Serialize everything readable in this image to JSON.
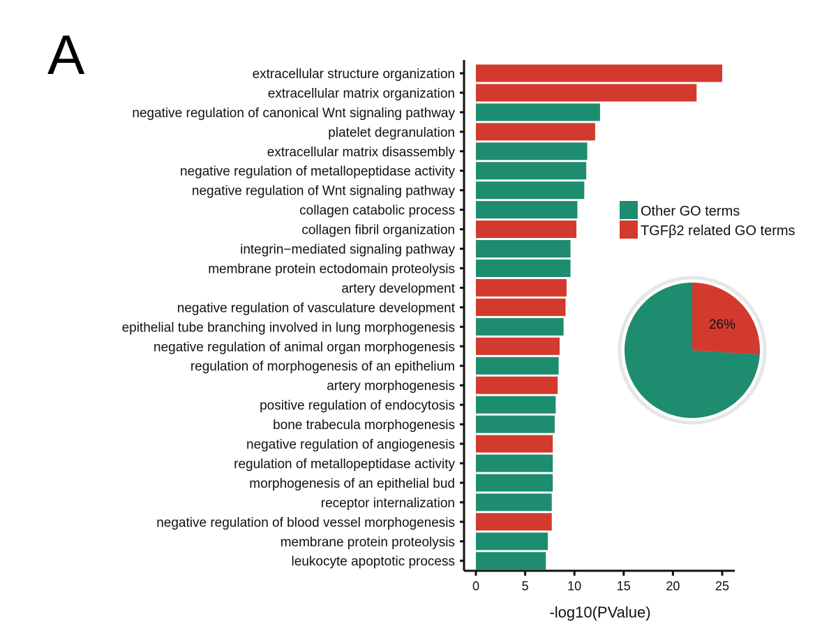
{
  "panel_label": "A",
  "colors": {
    "other": "#1e8c6e",
    "tgfb2": "#d23a2e",
    "axis": "#111111",
    "pie_ring": "#e6e6e6"
  },
  "chart_data": [
    {
      "type": "bar",
      "orientation": "horizontal",
      "title": "",
      "xlabel": "-log10(PValue)",
      "ylabel": "",
      "xlim": [
        0,
        26
      ],
      "xticks": [
        0,
        5,
        10,
        15,
        20,
        25
      ],
      "legend_position": "right",
      "categories": [
        "extracellular structure organization",
        "extracellular matrix organization",
        "negative regulation of canonical Wnt signaling pathway",
        "platelet degranulation",
        "extracellular matrix disassembly",
        "negative regulation of metallopeptidase activity",
        "negative regulation of Wnt signaling pathway",
        "collagen catabolic process",
        "collagen fibril organization",
        "integrin−mediated signaling pathway",
        "membrane protein ectodomain proteolysis",
        "artery development",
        "negative regulation of vasculature development",
        "epithelial tube branching involved in lung morphogenesis",
        "negative regulation of animal organ morphogenesis",
        "regulation of morphogenesis of an epithelium",
        "artery morphogenesis",
        "positive regulation of endocytosis",
        "bone trabecula morphogenesis",
        "negative regulation of angiogenesis",
        "regulation of metallopeptidase activity",
        "morphogenesis of an epithelial bud",
        "receptor internalization",
        "negative regulation of blood vessel morphogenesis",
        "membrane protein proteolysis",
        "leukocyte apoptotic process"
      ],
      "values": [
        25.0,
        22.4,
        12.6,
        12.1,
        11.3,
        11.2,
        11.0,
        10.3,
        10.2,
        9.6,
        9.6,
        9.2,
        9.1,
        8.9,
        8.5,
        8.4,
        8.3,
        8.1,
        8.0,
        7.8,
        7.8,
        7.8,
        7.7,
        7.7,
        7.3,
        7.1
      ],
      "groups": [
        "TGFβ2 related GO terms",
        "TGFβ2 related GO terms",
        "Other GO terms",
        "TGFβ2 related GO terms",
        "Other GO terms",
        "Other GO terms",
        "Other GO terms",
        "Other GO terms",
        "TGFβ2 related GO terms",
        "Other GO terms",
        "Other GO terms",
        "TGFβ2 related GO terms",
        "TGFβ2 related GO terms",
        "Other GO terms",
        "TGFβ2 related GO terms",
        "Other GO terms",
        "TGFβ2 related GO terms",
        "Other GO terms",
        "Other GO terms",
        "TGFβ2 related GO terms",
        "Other GO terms",
        "Other GO terms",
        "Other GO terms",
        "TGFβ2 related GO terms",
        "Other GO terms",
        "Other GO terms"
      ],
      "legend": [
        "Other GO terms",
        "TGFβ2 related GO terms"
      ]
    },
    {
      "type": "pie",
      "title": "",
      "labels": [
        "TGFβ2 related GO terms",
        "Other GO terms"
      ],
      "values": [
        26,
        74
      ],
      "data_labels": [
        "26%",
        ""
      ]
    }
  ]
}
